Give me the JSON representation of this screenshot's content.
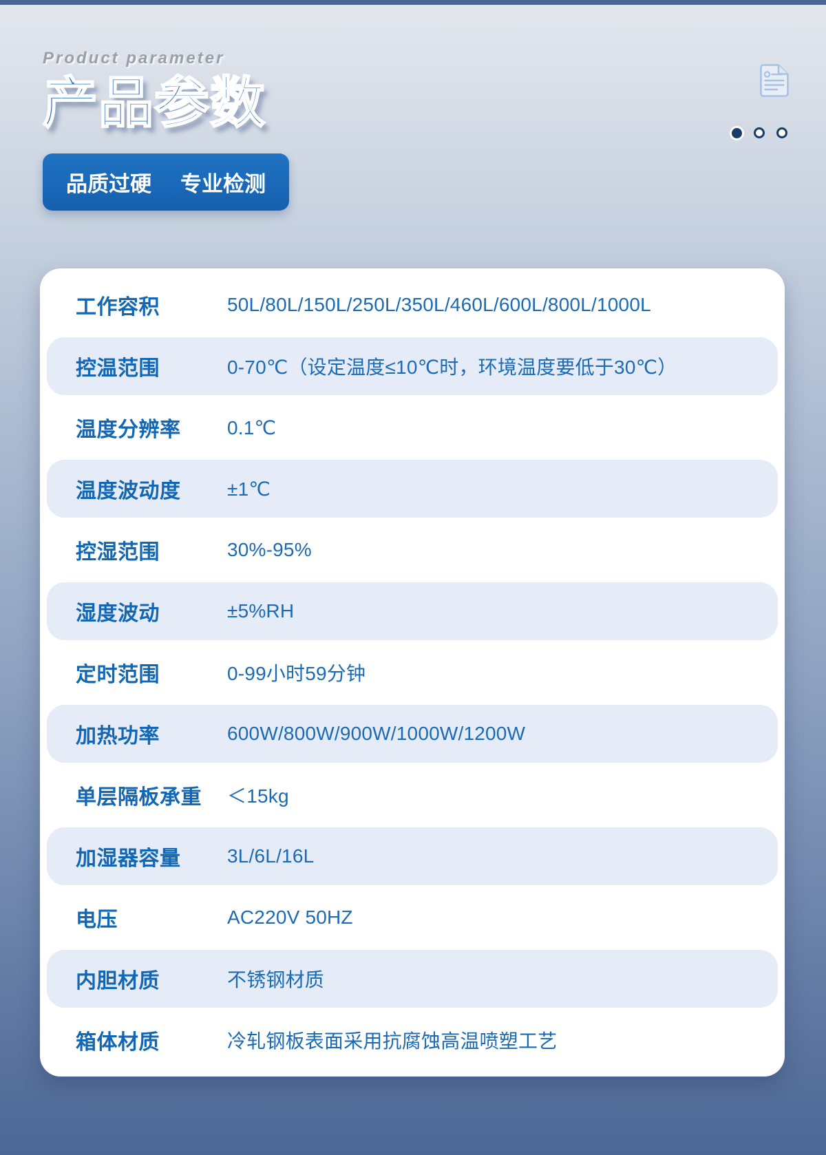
{
  "colors": {
    "accent": "#1a6ab6",
    "label_blue": "#1167b4",
    "title_blue": "#2c6db9",
    "navy": "#1b3c66",
    "row_alt_bg": "#e5ecf7",
    "card_bg": "#ffffff",
    "badge_top": "#2173c4",
    "badge_bottom": "#1560ae",
    "bg_top": "#e4e7ee",
    "bg_mid": "#c9d3e0",
    "bg_bottom": "#4c6795",
    "eyebrow_gray": "#98a0ac"
  },
  "header": {
    "eyebrow": "Product parameter",
    "title": "产品参数",
    "badge": {
      "left": "品质过硬",
      "right": "专业检测"
    },
    "icon": "document-icon",
    "pagination": {
      "count": 3,
      "active_index": 0
    }
  },
  "spec_table": {
    "rows": [
      {
        "label": "工作容积",
        "value": "50L/80L/150L/250L/350L/460L/600L/800L/1000L"
      },
      {
        "label": "控温范围",
        "value": "0-70℃（设定温度≤10℃时，环境温度要低于30℃）"
      },
      {
        "label": "温度分辨率",
        "value": "0.1℃"
      },
      {
        "label": "温度波动度",
        "value": "±1℃"
      },
      {
        "label": "控湿范围",
        "value": "30%-95%"
      },
      {
        "label": "湿度波动",
        "value": "±5%RH"
      },
      {
        "label": "定时范围",
        "value": "0-99小时59分钟"
      },
      {
        "label": "加热功率",
        "value": "600W/800W/900W/1000W/1200W"
      },
      {
        "label": "单层隔板承重",
        "value": "＜15kg"
      },
      {
        "label": "加湿器容量",
        "value": "3L/6L/16L"
      },
      {
        "label": "电压",
        "value": "AC220V 50HZ"
      },
      {
        "label": "内胆材质",
        "value": "不锈钢材质"
      },
      {
        "label": "箱体材质",
        "value": "冷轧钢板表面采用抗腐蚀高温喷塑工艺"
      }
    ]
  }
}
